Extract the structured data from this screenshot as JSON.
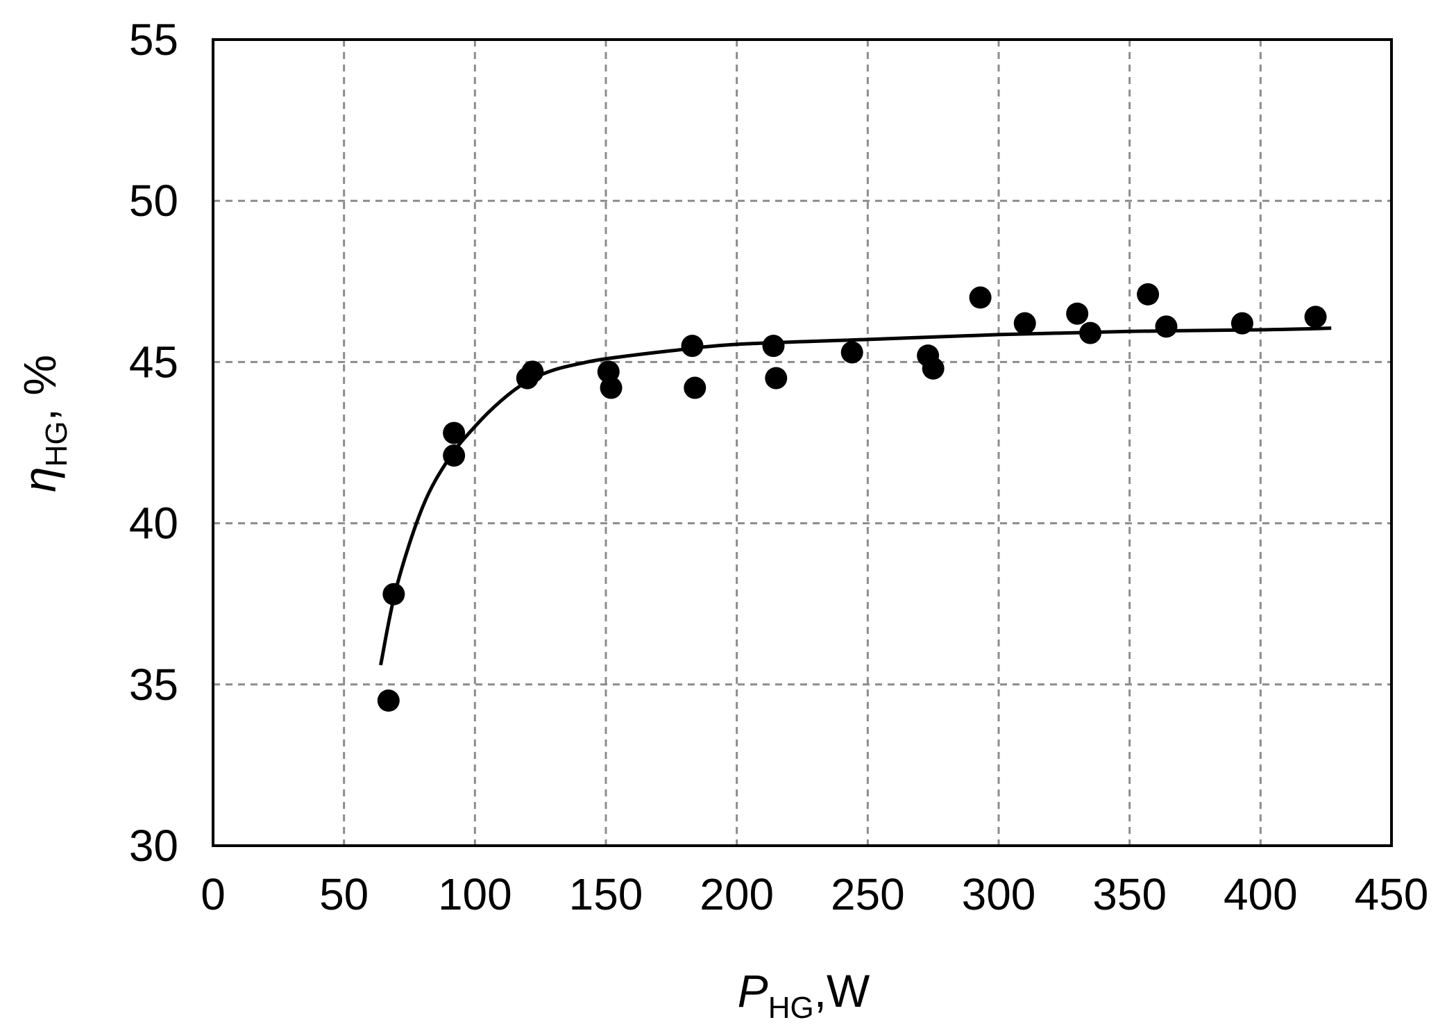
{
  "chart_data": {
    "type": "scatter",
    "xlabel": {
      "symbol": "P",
      "subscript": "HG",
      "unit": ",W"
    },
    "ylabel": {
      "symbol": "η",
      "subscript": "HG",
      "unit": ", %"
    },
    "xlim": [
      0,
      450
    ],
    "ylim": [
      30,
      55
    ],
    "xticks": [
      0,
      50,
      100,
      150,
      200,
      250,
      300,
      350,
      400,
      450
    ],
    "yticks": [
      30,
      35,
      40,
      45,
      50,
      55
    ],
    "grid": true,
    "series": [
      {
        "kind": "points",
        "color": "#000000",
        "x": [
          67,
          69,
          92,
          92,
          120,
          122,
          151,
          152,
          183,
          184,
          214,
          215,
          244,
          273,
          275,
          293,
          310,
          330,
          335,
          357,
          364,
          393,
          421
        ],
        "y": [
          34.5,
          37.8,
          42.8,
          42.1,
          44.5,
          44.7,
          44.7,
          44.2,
          45.5,
          44.2,
          45.5,
          44.5,
          45.3,
          45.2,
          44.8,
          47.0,
          46.2,
          46.5,
          45.9,
          47.1,
          46.1,
          46.2,
          46.4
        ]
      },
      {
        "kind": "fit-line",
        "color": "#000000",
        "x": [
          64,
          70,
          80,
          90,
          100,
          110,
          120,
          130,
          140,
          150,
          175,
          200,
          250,
          300,
          350,
          400,
          427
        ],
        "y": [
          35.6,
          38.0,
          40.5,
          42.0,
          43.0,
          43.8,
          44.4,
          44.75,
          44.95,
          45.1,
          45.35,
          45.55,
          45.7,
          45.85,
          45.95,
          46.0,
          46.05
        ]
      }
    ]
  }
}
